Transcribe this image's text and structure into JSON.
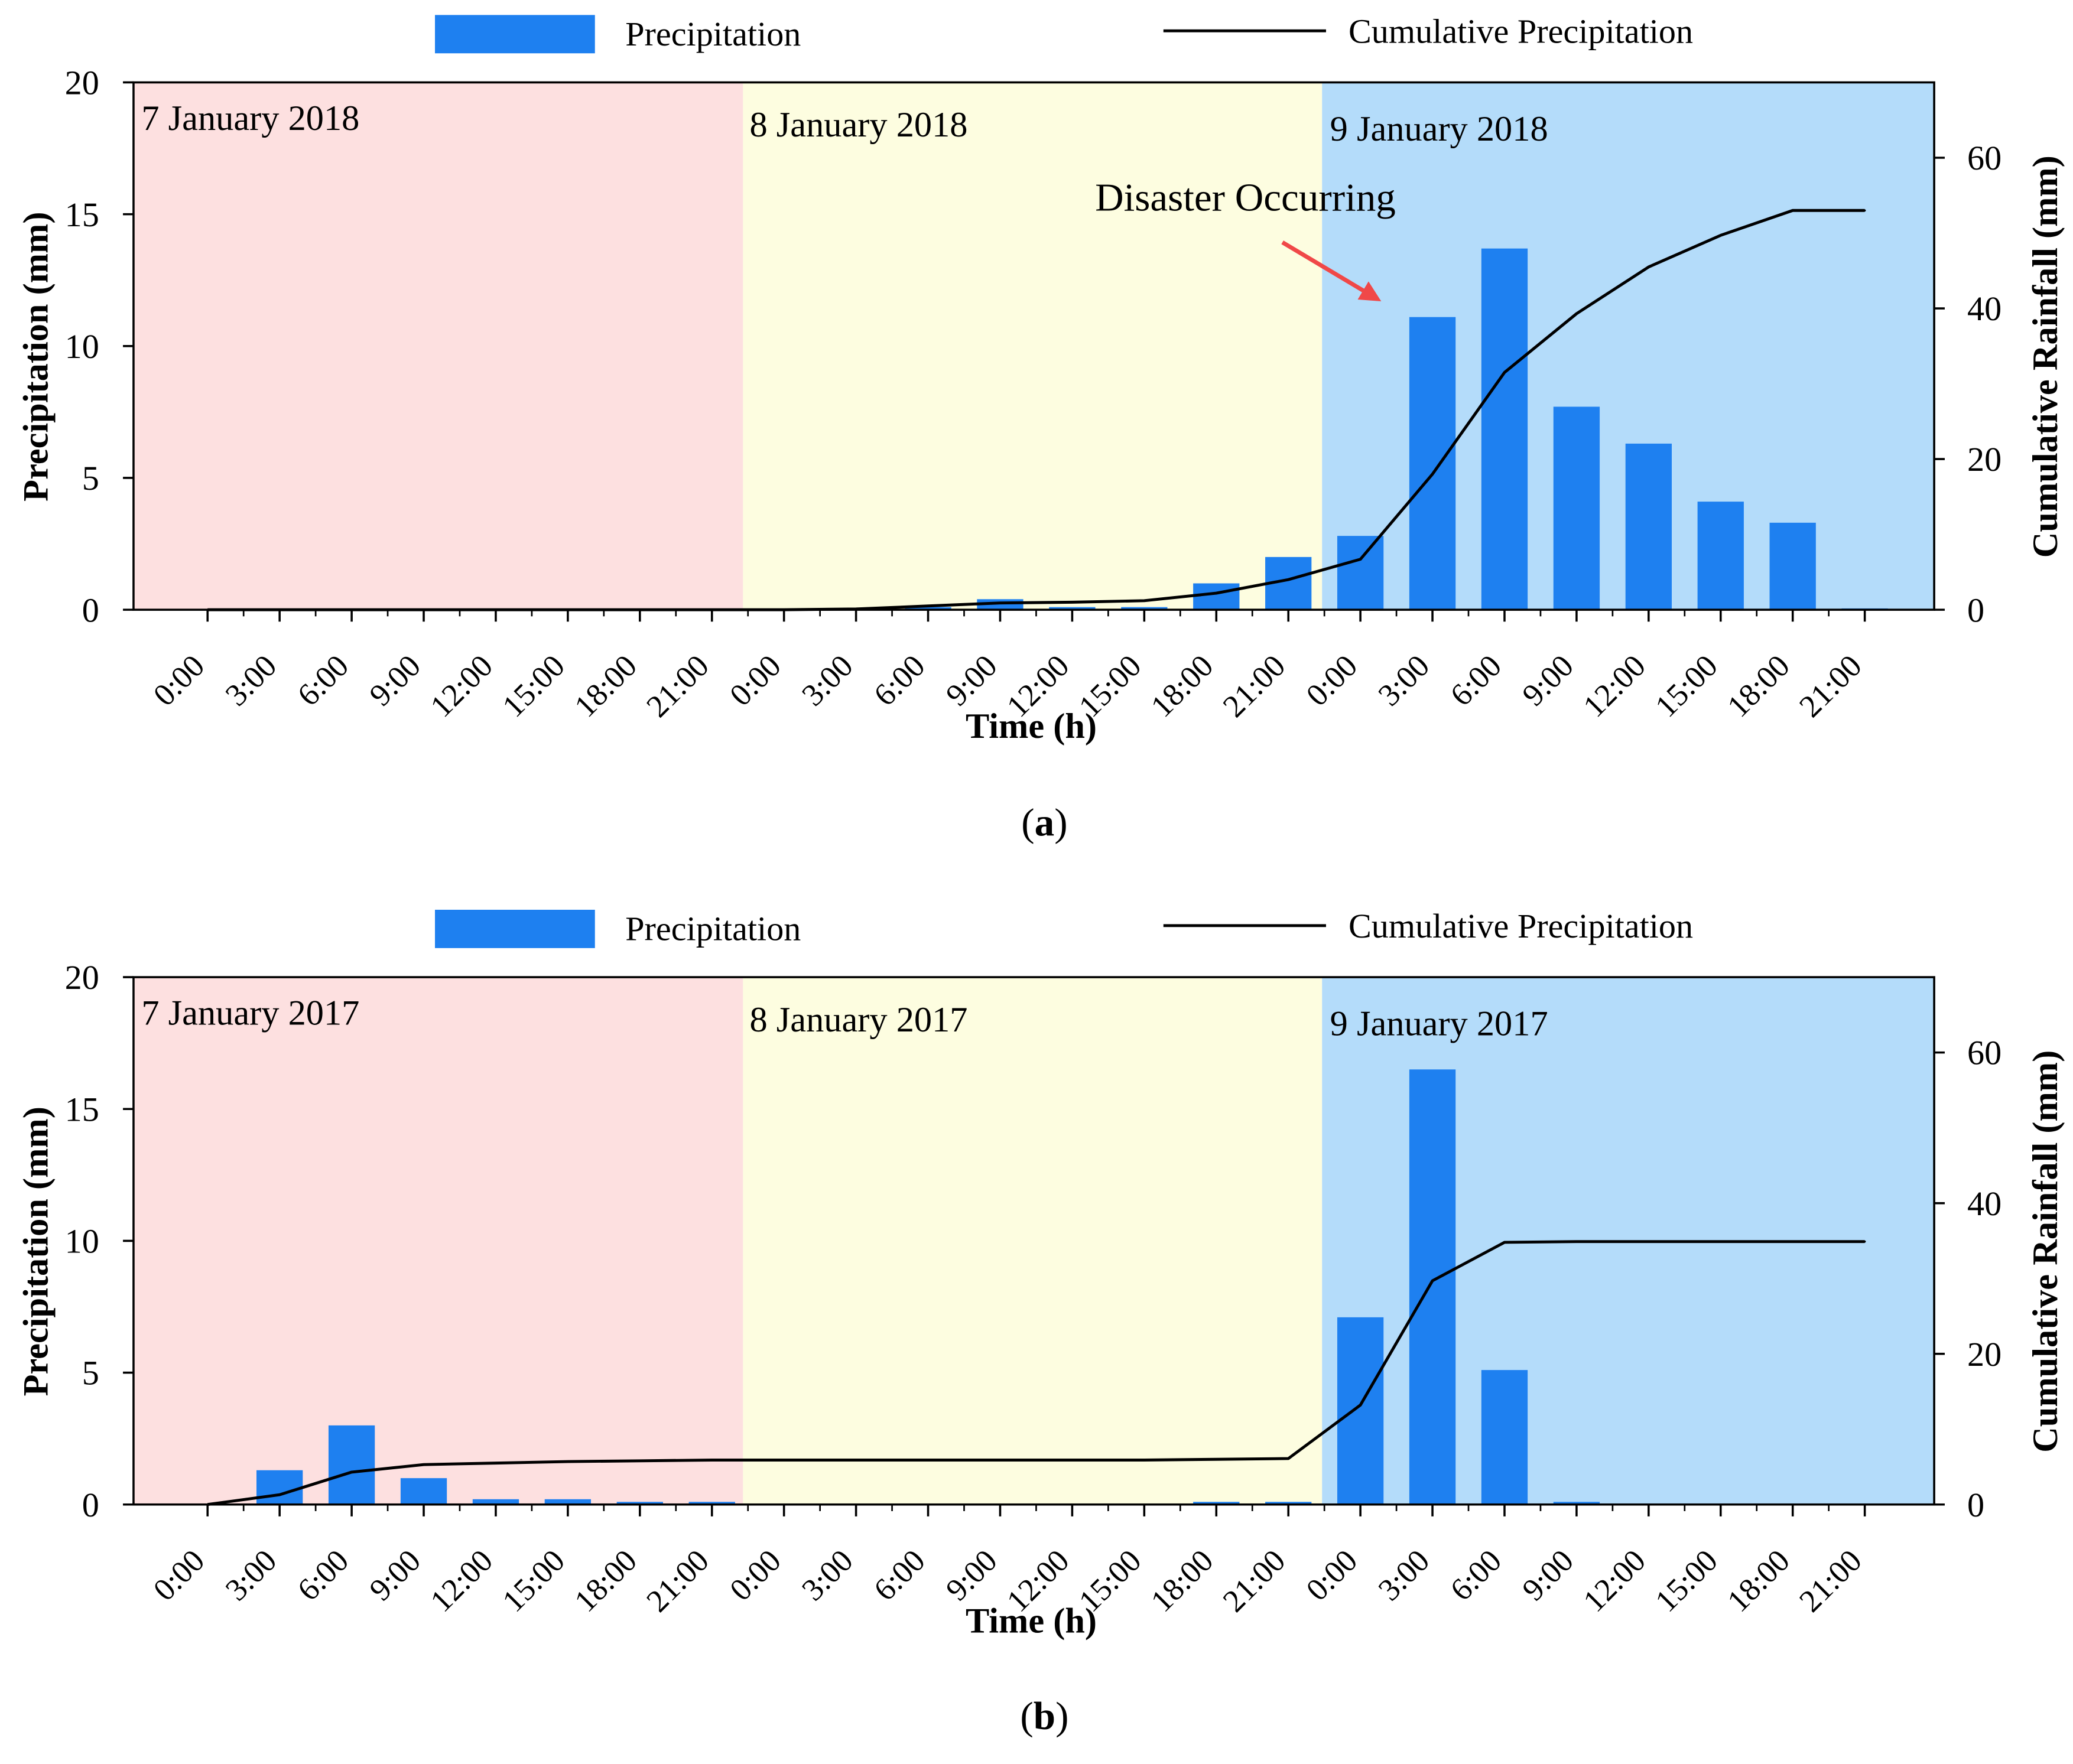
{
  "colors": {
    "bar": "#1e80f0",
    "line": "#000000",
    "arrow": "#f04848",
    "day1_bg": "#fde0e0",
    "day2_bg": "#fdfde0",
    "day3_bg": "#b4dcfa"
  },
  "legend": {
    "precipitation_label": "Precipitation",
    "cumulative_label": "Cumulative Precipitation"
  },
  "x_tick_labels": [
    "0:00",
    "3:00",
    "6:00",
    "9:00",
    "12:00",
    "15:00",
    "18:00",
    "21:00",
    "0:00",
    "3:00",
    "6:00",
    "9:00",
    "12:00",
    "15:00",
    "18:00",
    "21:00",
    "0:00",
    "3:00",
    "6:00",
    "9:00",
    "12:00",
    "15:00",
    "18:00",
    "21:00"
  ],
  "chart_data": [
    {
      "type": "bar",
      "panel_label_prefix": "(",
      "panel_label": "a",
      "panel_label_suffix": ")",
      "xlabel": "Time (h)",
      "ylabel": "Precipitation (mm)",
      "y2label": "Cumulative Rainfall (mm)",
      "ylim": [
        0,
        20
      ],
      "yticks": [
        0,
        5,
        10,
        15,
        20
      ],
      "y2lim": [
        0,
        70
      ],
      "y2ticks": [
        0,
        20,
        40,
        60
      ],
      "day_labels": [
        "7 January 2018",
        "8 January 2018",
        "9 January 2018"
      ],
      "annotation": "Disaster Occurring",
      "annotation_target_index": 17,
      "series": [
        {
          "name": "Precipitation",
          "values": [
            0,
            0,
            0,
            0,
            0,
            0,
            0,
            0,
            0,
            0,
            0.1,
            0.4,
            0.1,
            0.1,
            1.0,
            2.0,
            2.8,
            11.1,
            13.7,
            7.7,
            6.3,
            4.1,
            3.3,
            0.05
          ]
        },
        {
          "name": "Cumulative Precipitation",
          "values": [
            0,
            0,
            0,
            0,
            0,
            0,
            0,
            0,
            0,
            0.1,
            0.5,
            0.9,
            1.0,
            1.2,
            2.2,
            4.0,
            6.7,
            18.0,
            31.5,
            39.3,
            45.5,
            49.7,
            53.0,
            53.0
          ]
        }
      ]
    },
    {
      "type": "bar",
      "panel_label_prefix": "(",
      "panel_label": "b",
      "panel_label_suffix": ")",
      "xlabel": "Time (h)",
      "ylabel": "Precipitation (mm)",
      "y2label": "Cumulative Rainfall (mm)",
      "ylim": [
        0,
        20
      ],
      "yticks": [
        0,
        5,
        10,
        15,
        20
      ],
      "y2lim": [
        0,
        70
      ],
      "y2ticks": [
        0,
        20,
        40,
        60
      ],
      "day_labels": [
        "7 January 2017",
        "8 January 2017",
        "9 January 2017"
      ],
      "series": [
        {
          "name": "Precipitation",
          "values": [
            0,
            1.3,
            3.0,
            1.0,
            0.2,
            0.2,
            0.1,
            0.1,
            0,
            0,
            0,
            0,
            0,
            0,
            0.1,
            0.1,
            7.1,
            16.5,
            5.1,
            0.1,
            0,
            0,
            0,
            0
          ]
        },
        {
          "name": "Cumulative Precipitation",
          "values": [
            0,
            1.3,
            4.3,
            5.3,
            5.5,
            5.7,
            5.8,
            5.9,
            5.9,
            5.9,
            5.9,
            5.9,
            5.9,
            5.9,
            6.0,
            6.1,
            13.2,
            29.7,
            34.8,
            34.9,
            34.9,
            34.9,
            34.9,
            34.9
          ]
        }
      ]
    }
  ]
}
